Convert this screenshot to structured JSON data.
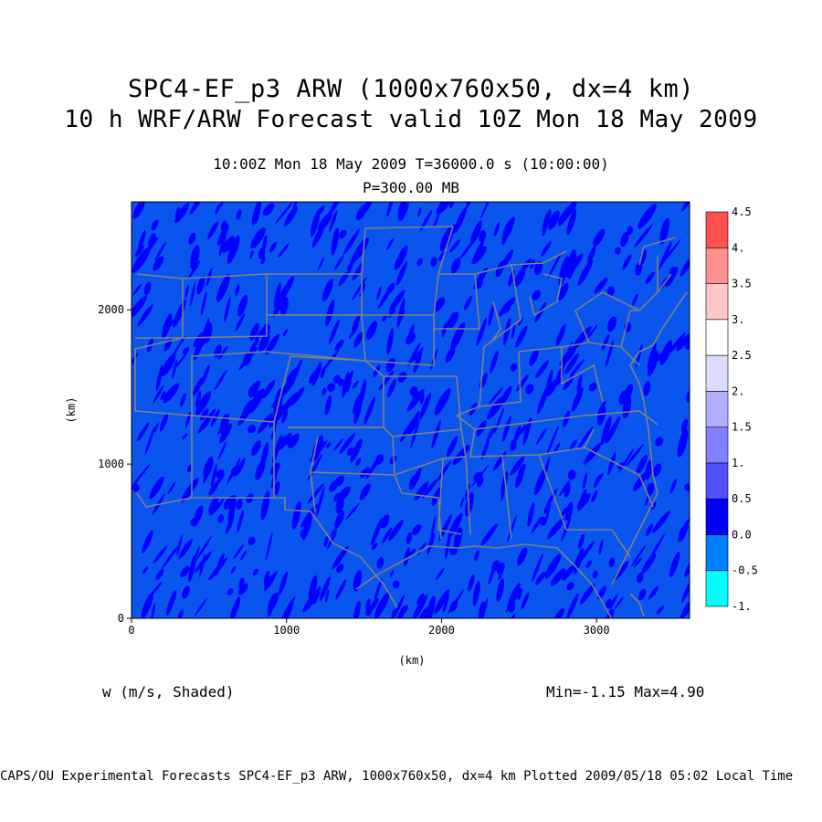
{
  "title_line1": "SPC4-EF_p3 ARW (1000x760x50, dx=4 km)",
  "title_line2": "10 h WRF/ARW Forecast valid 10Z Mon 18 May 2009",
  "subtitle_time": "10:00Z Mon 18 May 2009    T=36000.0 s (10:00:00)",
  "subtitle_level": "P=300.00 MB",
  "variable_label": "w (m/s, Shaded)",
  "minmax_label": "Min=-1.15 Max=4.90",
  "credit_line": "CAPS/OU Experimental Forecasts  SPC4-EF_p3 ARW, 1000x760x50, dx=4 km  Plotted 2009/05/18 05:02 Local Time",
  "colors": {
    "background_field": "#0a55ee",
    "strong_downward": "#0000ff",
    "border_lines": "#808080"
  },
  "chart_data": {
    "type": "heatmap",
    "x_axis": {
      "label": "(km)",
      "range": [
        0,
        3600
      ],
      "ticks": [
        "0",
        "1000",
        "2000",
        "3000"
      ]
    },
    "y_axis": {
      "label": "(km)",
      "range": [
        0,
        2700
      ],
      "ticks": [
        "0",
        "1000",
        "2000"
      ]
    },
    "colorbar": {
      "labels": [
        "-1.",
        "-0.5",
        "0.0",
        "0.5",
        "1.",
        "1.5",
        "2.",
        "2.5",
        "3.",
        "3.5",
        "4.",
        "4.5"
      ],
      "colors": [
        "#00ffff",
        "#0080ff",
        "#0000ff",
        "#5050ff",
        "#8080ff",
        "#b0b0ff",
        "#dcdcff",
        "#ffffff",
        "#ffc8c8",
        "#ff9090",
        "#ff5050",
        "#ff0000"
      ]
    },
    "min": -1.15,
    "max": 4.9
  }
}
